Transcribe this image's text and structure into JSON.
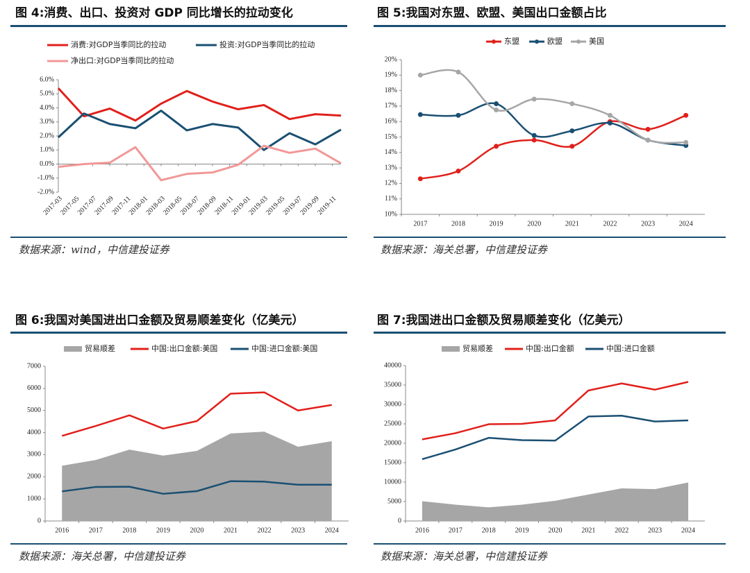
{
  "chart_data": [
    {
      "type": "line",
      "title": "图 4:消费、出口、投资对 GDP 同比增长的拉动变化",
      "source": "数据来源：wind，中信建投证券",
      "x": [
        3,
        6,
        9,
        12,
        15,
        18,
        21,
        24,
        27,
        30,
        33,
        36
      ],
      "xlim": [
        3,
        36
      ],
      "xticks": [
        {
          "value": 3,
          "label": "2017-03"
        },
        {
          "value": 5,
          "label": "2017-05"
        },
        {
          "value": 7,
          "label": "2017-07"
        },
        {
          "value": 9,
          "label": "2017-09"
        },
        {
          "value": 11,
          "label": "2017-11"
        },
        {
          "value": 13,
          "label": "2018-01"
        },
        {
          "value": 15,
          "label": "2018-03"
        },
        {
          "value": 17,
          "label": "2018-05"
        },
        {
          "value": 19,
          "label": "2018-07"
        },
        {
          "value": 21,
          "label": "2018-09"
        },
        {
          "value": 23,
          "label": "2018-11"
        },
        {
          "value": 25,
          "label": "2019-01"
        },
        {
          "value": 27,
          "label": "2019-03"
        },
        {
          "value": 29,
          "label": "2019-05"
        },
        {
          "value": 31,
          "label": "2019-07"
        },
        {
          "value": 33,
          "label": "2019-09"
        },
        {
          "value": 35,
          "label": "2019-11"
        }
      ],
      "ylim": [
        -2,
        6
      ],
      "yticks": [
        {
          "value": -2,
          "label": "-2.0%"
        },
        {
          "value": -1,
          "label": "-1.0%"
        },
        {
          "value": 0,
          "label": "0.0%"
        },
        {
          "value": 1,
          "label": "1.0%"
        },
        {
          "value": 2,
          "label": "2.0%"
        },
        {
          "value": 3,
          "label": "3.0%"
        },
        {
          "value": 4,
          "label": "4.0%"
        },
        {
          "value": 5,
          "label": "5.0%"
        },
        {
          "value": 6,
          "label": "6.0%"
        }
      ],
      "grid": false,
      "series": [
        {
          "name": "消费:对GDP当季同比的拉动",
          "color": "#e0201b",
          "values": [
            5.4,
            3.4,
            3.95,
            3.1,
            4.3,
            5.2,
            4.45,
            3.9,
            4.2,
            3.2,
            3.55,
            3.45
          ]
        },
        {
          "name": "投资:对GDP当季同比的拉动",
          "color": "#1a4f72",
          "values": [
            1.9,
            3.6,
            2.85,
            2.55,
            3.8,
            2.4,
            2.85,
            2.6,
            1.0,
            2.2,
            1.4,
            2.45
          ]
        },
        {
          "name": "净出口:对GDP当季同比的拉动",
          "color": "#f29797",
          "values": [
            -0.2,
            0.0,
            0.1,
            1.2,
            -1.15,
            -0.7,
            -0.6,
            -0.05,
            1.3,
            0.8,
            1.1,
            0.05
          ]
        }
      ]
    },
    {
      "type": "line",
      "title": "图 5:我国对东盟、欧盟、美国出口金额占比",
      "source": "数据来源：海关总署，中信建投证券",
      "categories": [
        "2017",
        "2018",
        "2019",
        "2020",
        "2021",
        "2022",
        "2023",
        "2024"
      ],
      "ylim": [
        10,
        20
      ],
      "yticks": [
        {
          "value": 10,
          "label": "10%"
        },
        {
          "value": 11,
          "label": "11%"
        },
        {
          "value": 12,
          "label": "12%"
        },
        {
          "value": 13,
          "label": "13%"
        },
        {
          "value": 14,
          "label": "14%"
        },
        {
          "value": 15,
          "label": "15%"
        },
        {
          "value": 16,
          "label": "16%"
        },
        {
          "value": 17,
          "label": "17%"
        },
        {
          "value": 18,
          "label": "18%"
        },
        {
          "value": 19,
          "label": "19%"
        },
        {
          "value": 20,
          "label": "20%"
        }
      ],
      "grid": false,
      "smooth": true,
      "markers": true,
      "series": [
        {
          "name": "东盟",
          "color": "#e0201b",
          "values": [
            12.3,
            12.8,
            14.4,
            14.8,
            14.4,
            16.0,
            15.5,
            16.4
          ]
        },
        {
          "name": "欧盟",
          "color": "#1a4f72",
          "values": [
            16.45,
            16.4,
            17.15,
            15.1,
            15.4,
            15.9,
            14.8,
            14.45
          ]
        },
        {
          "name": "美国",
          "color": "#a6a6a6",
          "values": [
            19.0,
            19.2,
            16.75,
            17.45,
            17.15,
            16.4,
            14.8,
            14.65
          ]
        }
      ]
    },
    {
      "type": "line",
      "title": "图 6:我国对美国进出口金额及贸易顺差变化（亿美元）",
      "source": "数据来源：海关总署，中信建投证券",
      "categories": [
        "2016",
        "2017",
        "2018",
        "2019",
        "2020",
        "2021",
        "2022",
        "2023",
        "2024"
      ],
      "ylim": [
        0,
        7000
      ],
      "yticks": [
        0,
        1000,
        2000,
        3000,
        4000,
        5000,
        6000,
        7000
      ],
      "grid": false,
      "series": [
        {
          "name": "贸易顺差",
          "type": "area",
          "color": "#a6a6a6",
          "values": [
            2500,
            2760,
            3230,
            2960,
            3170,
            3960,
            4040,
            3360,
            3610
          ]
        },
        {
          "name": "中国:出口金额:美国",
          "color": "#e0201b",
          "values": [
            3850,
            4300,
            4780,
            4180,
            4520,
            5760,
            5820,
            5000,
            5250
          ]
        },
        {
          "name": "中国:进口金额:美国",
          "color": "#1a4f72",
          "values": [
            1340,
            1540,
            1550,
            1230,
            1350,
            1800,
            1780,
            1640,
            1640
          ]
        }
      ]
    },
    {
      "type": "line",
      "title": "图 7:我国进出口金额及贸易顺差变化（亿美元）",
      "source": "数据来源：海关总署，中信建投证券",
      "categories": [
        "2016",
        "2017",
        "2018",
        "2019",
        "2020",
        "2021",
        "2022",
        "2023",
        "2024"
      ],
      "ylim": [
        0,
        40000
      ],
      "yticks": [
        0,
        5000,
        10000,
        15000,
        20000,
        25000,
        30000,
        35000,
        40000
      ],
      "grid": false,
      "series": [
        {
          "name": "贸易顺差",
          "type": "area",
          "color": "#a6a6a6",
          "values": [
            5100,
            4200,
            3500,
            4200,
            5200,
            6800,
            8400,
            8200,
            9900
          ]
        },
        {
          "name": "中国:出口金额",
          "color": "#e0201b",
          "values": [
            21000,
            22600,
            24900,
            25000,
            25900,
            33600,
            35400,
            33800,
            35800
          ]
        },
        {
          "name": "中国:进口金额",
          "color": "#1a4f72",
          "values": [
            15900,
            18400,
            21400,
            20800,
            20700,
            26900,
            27100,
            25600,
            25900
          ]
        }
      ]
    }
  ]
}
